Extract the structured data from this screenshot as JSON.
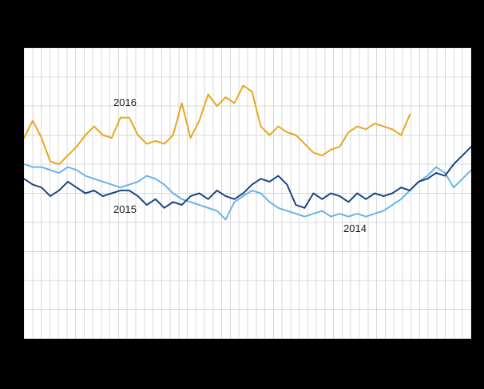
{
  "colors": {
    "page_background": "#000000",
    "plot_background": "#ffffff",
    "grid_color": "#d8d8d8"
  },
  "annotations": {
    "label_2016": "2016",
    "label_2015": "2015",
    "label_2014": "2014"
  },
  "chart_data": {
    "type": "line",
    "title": "",
    "xlabel": "",
    "ylabel": "",
    "axis_tick_labels_visible": false,
    "legend": "inline-annotations",
    "x_points": 52,
    "ylim": [
      0,
      10
    ],
    "grid": {
      "on": true,
      "x_divisions": 52,
      "y_divisions": 10,
      "color": "#d8d8d8"
    },
    "series": [
      {
        "name": "2016",
        "color": "#e8a71e",
        "values": [
          6.9,
          7.5,
          6.9,
          6.1,
          6.0,
          6.3,
          6.6,
          7.0,
          7.3,
          7.0,
          6.9,
          7.6,
          7.6,
          7.0,
          6.7,
          6.8,
          6.7,
          7.0,
          8.1,
          6.9,
          7.5,
          8.4,
          8.0,
          8.3,
          8.1,
          8.7,
          8.5,
          7.3,
          7.0,
          7.3,
          7.1,
          7.0,
          6.7,
          6.4,
          6.3,
          6.5,
          6.6,
          7.1,
          7.3,
          7.2,
          7.4,
          7.3,
          7.2,
          7.0,
          7.7
        ]
      },
      {
        "name": "2015",
        "color": "#1b4586",
        "values": [
          5.5,
          5.3,
          5.2,
          4.9,
          5.1,
          5.4,
          5.2,
          5.0,
          5.1,
          4.9,
          5.0,
          5.1,
          5.1,
          4.9,
          4.6,
          4.8,
          4.5,
          4.7,
          4.6,
          4.9,
          5.0,
          4.8,
          5.1,
          4.9,
          4.8,
          5.0,
          5.3,
          5.5,
          5.4,
          5.6,
          5.3,
          4.6,
          4.5,
          5.0,
          4.8,
          5.0,
          4.9,
          4.7,
          5.0,
          4.8,
          5.0,
          4.9,
          5.0,
          5.2,
          5.1,
          5.4,
          5.5,
          5.7,
          5.6,
          6.0,
          6.3,
          6.6
        ]
      },
      {
        "name": "2014",
        "color": "#66b5e6",
        "values": [
          6.0,
          5.9,
          5.9,
          5.8,
          5.7,
          5.9,
          5.8,
          5.6,
          5.5,
          5.4,
          5.3,
          5.2,
          5.3,
          5.4,
          5.6,
          5.5,
          5.3,
          5.0,
          4.8,
          4.7,
          4.6,
          4.5,
          4.4,
          4.1,
          4.7,
          4.9,
          5.1,
          5.0,
          4.7,
          4.5,
          4.4,
          4.3,
          4.2,
          4.3,
          4.4,
          4.2,
          4.3,
          4.2,
          4.3,
          4.2,
          4.3,
          4.4,
          4.6,
          4.8,
          5.1,
          5.4,
          5.6,
          5.9,
          5.7,
          5.2,
          5.5,
          5.8
        ]
      }
    ]
  }
}
